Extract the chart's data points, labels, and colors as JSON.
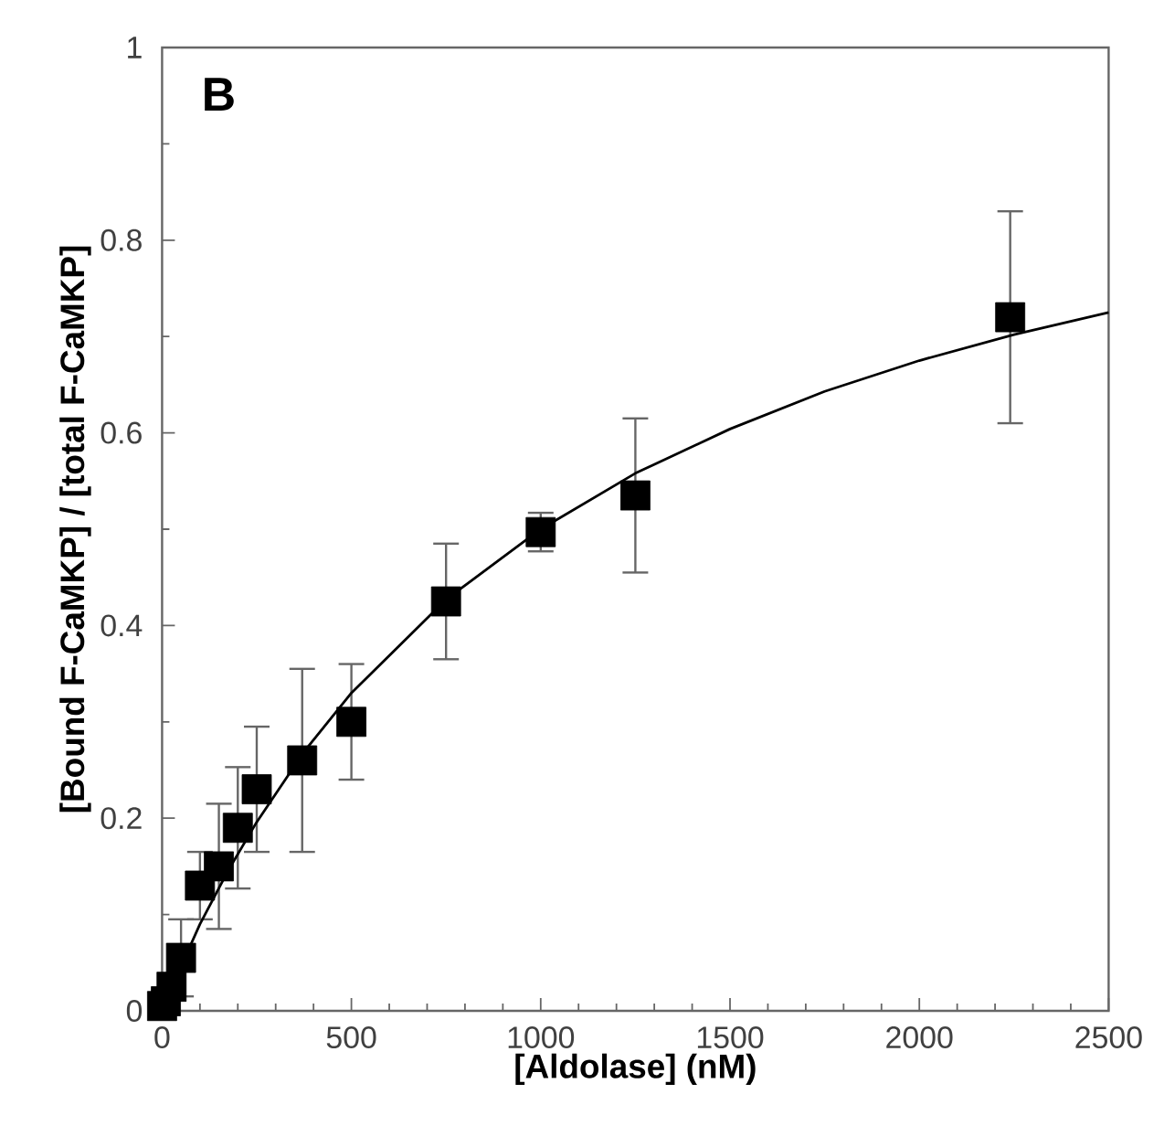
{
  "chart_data": {
    "type": "scatter",
    "xlabel": "[Aldolase] (nM)",
    "ylabel": "[Bound F-CaMKP] / [total F-CaMKP]",
    "annotations": [
      "B"
    ],
    "xlim": [
      0,
      2500
    ],
    "xticks": [
      0,
      500,
      1000,
      1500,
      2000,
      2500
    ],
    "ylim": [
      0,
      1
    ],
    "yticks": [
      0,
      0.2,
      0.4,
      0.6,
      0.8,
      1
    ],
    "series": [
      {
        "color": "#000000",
        "marker": "square",
        "x": [
          0,
          10,
          25,
          50,
          100,
          150,
          200,
          250,
          370,
          500,
          750,
          1000,
          1250,
          2240
        ],
        "values": [
          0.005,
          0.01,
          0.025,
          0.055,
          0.13,
          0.15,
          0.19,
          0.23,
          0.26,
          0.3,
          0.425,
          0.497,
          0.535,
          0.72
        ],
        "errors": [
          null,
          null,
          null,
          0.04,
          0.035,
          0.065,
          0.063,
          0.065,
          0.095,
          0.06,
          0.06,
          0.02,
          0.08,
          0.11
        ]
      },
      {
        "type": "line",
        "color": "#000000",
        "x": [
          0,
          50,
          100,
          175,
          250,
          375,
          500,
          750,
          1000,
          1250,
          1500,
          1750,
          2000,
          2250,
          2500
        ],
        "values": [
          0,
          0.046,
          0.09,
          0.146,
          0.196,
          0.269,
          0.33,
          0.427,
          0.5,
          0.558,
          0.604,
          0.643,
          0.675,
          0.702,
          0.725
        ]
      }
    ]
  }
}
